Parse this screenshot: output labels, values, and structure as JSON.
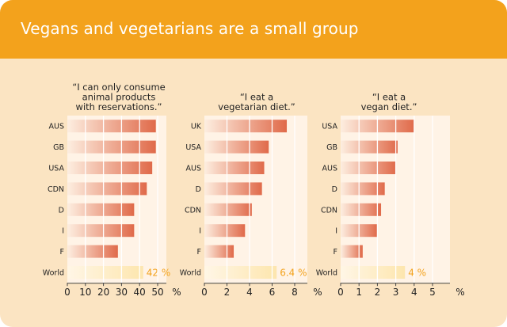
{
  "title": "Vegans and vegetarians are a small group",
  "colors": {
    "header": "#f3a21c",
    "panel_bg": "#fbe4c2",
    "bar_dark": "#e06a4a",
    "bar_light": "#fdeee0",
    "world_bar": "#fde6ae",
    "world_label": "#f3a21c",
    "text": "#222222"
  },
  "chart_data": [
    {
      "type": "bar",
      "orientation": "horizontal",
      "title_lines": [
        "“I can only consume",
        "animal products",
        "with reservations.”"
      ],
      "categories": [
        "AUS",
        "GB",
        "USA",
        "CDN",
        "D",
        "I",
        "F",
        "World"
      ],
      "values": [
        49,
        49,
        47,
        44,
        37,
        37,
        28,
        42
      ],
      "highlight_label": "42 %",
      "ticks": [
        "0",
        "10",
        "20",
        "30",
        "40",
        "50"
      ],
      "xlim": [
        0,
        50
      ],
      "unit": "%",
      "grid": true
    },
    {
      "type": "bar",
      "orientation": "horizontal",
      "title_lines": [
        "“I eat a",
        "vegetarian diet.”"
      ],
      "categories": [
        "UK",
        "USA",
        "AUS",
        "D",
        "CDN",
        "I",
        "F",
        "World"
      ],
      "values": [
        7.3,
        5.7,
        5.3,
        5.1,
        4.2,
        3.6,
        2.6,
        6.4
      ],
      "highlight_label": "6.4 %",
      "ticks": [
        "0",
        "2",
        "4",
        "6",
        "8"
      ],
      "xlim": [
        0,
        8
      ],
      "unit": "%",
      "grid": true
    },
    {
      "type": "bar",
      "orientation": "horizontal",
      "title_lines": [
        "“I eat a",
        "vegan diet.”"
      ],
      "categories": [
        "USA",
        "GB",
        "AUS",
        "D",
        "CDN",
        "I",
        "F",
        "World"
      ],
      "values": [
        4.0,
        3.1,
        3.0,
        2.4,
        2.2,
        2.0,
        1.2,
        3.5
      ],
      "highlight_label": "4 %",
      "ticks": [
        "0",
        "1",
        "2",
        "3",
        "4",
        "5"
      ],
      "xlim": [
        0,
        5
      ],
      "unit": "%",
      "grid": true
    }
  ]
}
